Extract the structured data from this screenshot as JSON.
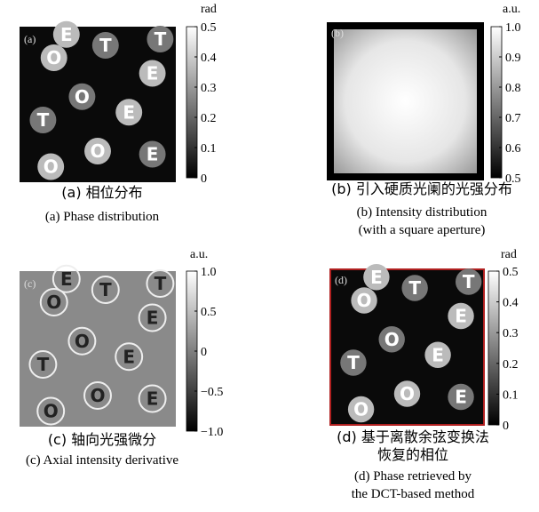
{
  "panels": [
    {
      "label": "(a)",
      "unit": "rad",
      "range": [
        0,
        0.5
      ],
      "ticks": [
        0.5,
        0.4,
        0.3,
        0.2,
        0.1,
        0
      ],
      "caption_zh": [
        "(a) 相位分布"
      ],
      "caption_en": [
        "(a) Phase distribution"
      ],
      "glyphs": [
        "O",
        "T",
        "E",
        "O",
        "E",
        "T",
        "O",
        "E",
        "O",
        "T",
        "E"
      ]
    },
    {
      "label": "(b)",
      "unit": "a.u.",
      "range": [
        0.5,
        1
      ],
      "ticks": [
        {
          "value": 1,
          "label": "1.0"
        },
        0.9,
        0.8,
        0.7,
        0.6,
        0.5
      ],
      "caption_zh": [
        "(b) 引入硬质光阑的光强分布"
      ],
      "caption_en": [
        "(b) Intensity distribution",
        "(with a square aperture)"
      ],
      "glyphs": []
    },
    {
      "label": "(c)",
      "unit": "a.u.",
      "range": [
        -1,
        1
      ],
      "ticks": [
        {
          "value": 1,
          "label": "1.0"
        },
        0.5,
        0,
        {
          "value": -0.5,
          "label": "−0.5"
        },
        {
          "value": -1,
          "label": "−1.0"
        }
      ],
      "caption_zh": [
        "(c) 轴向光强微分"
      ],
      "caption_en": [
        "(c) Axial intensity derivative"
      ],
      "glyphs": [
        "O",
        "T",
        "E",
        "O",
        "E",
        "T",
        "O",
        "E",
        "O",
        "T",
        "E"
      ]
    },
    {
      "label": "(d)",
      "unit": "rad",
      "range": [
        0,
        0.5
      ],
      "ticks": [
        0.5,
        0.4,
        0.3,
        0.2,
        0.1,
        0
      ],
      "caption_zh": [
        "(d) 基于离散余弦变换法",
        "恢复的相位"
      ],
      "caption_en": [
        "(d) Phase retrieved by",
        "the DCT-based method"
      ],
      "glyphs": [
        "O",
        "T",
        "E",
        "O",
        "E",
        "T",
        "O",
        "E",
        "O",
        "T",
        "E"
      ]
    }
  ]
}
